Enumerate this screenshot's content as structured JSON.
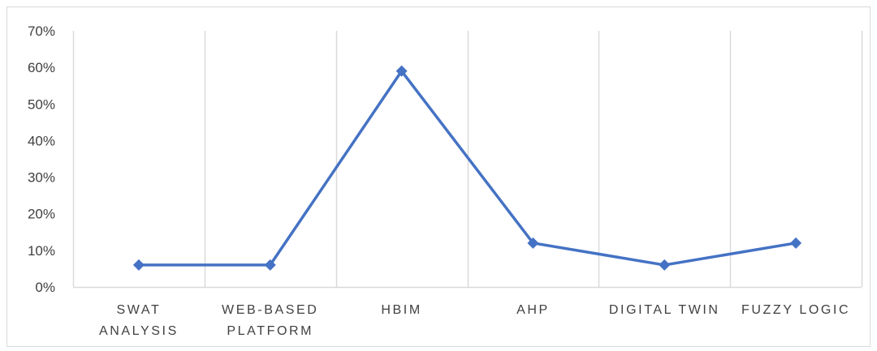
{
  "chart_data": {
    "type": "line",
    "categories": [
      [
        "SWAT",
        "ANALYSIS"
      ],
      [
        "WEB-BASED",
        "PLATFORM"
      ],
      [
        "HBIM"
      ],
      [
        "AHP"
      ],
      [
        "DIGITAL TWIN"
      ],
      [
        "FUZZY LOGIC"
      ]
    ],
    "series": [
      {
        "values": [
          0.06,
          0.06,
          0.59,
          0.12,
          0.06,
          0.12
        ]
      }
    ],
    "ylim": [
      0,
      0.7
    ],
    "yticks": [
      "0%",
      "10%",
      "20%",
      "30%",
      "40%",
      "50%",
      "60%",
      "70%"
    ],
    "grid": "vertical",
    "line_color": "#4472c4",
    "grid_color": "#d9d9d9",
    "marker": "diamond"
  }
}
